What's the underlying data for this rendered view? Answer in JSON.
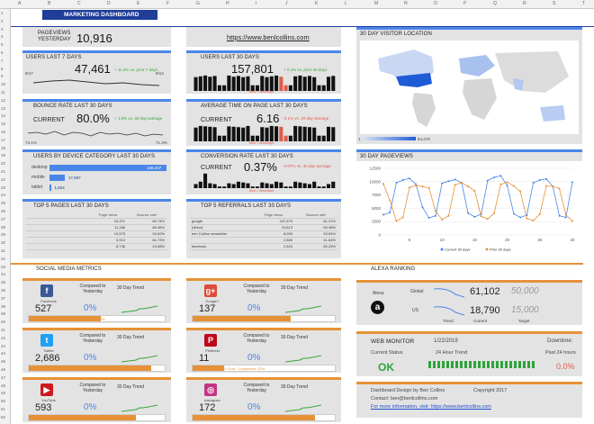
{
  "sheet": {
    "columns": [
      "A",
      "B",
      "C",
      "D",
      "E",
      "F",
      "G",
      "H",
      "I",
      "J",
      "K",
      "L",
      "M",
      "N",
      "O",
      "P",
      "Q",
      "R",
      "S",
      "T"
    ],
    "rows": [
      "1",
      "2",
      "3",
      "4",
      "5",
      "6",
      "7",
      "8",
      "9",
      "10",
      "11",
      "12",
      "13",
      "14",
      "15",
      "16",
      "17",
      "18",
      "19",
      "20",
      "21",
      "22",
      "23",
      "24",
      "25",
      "26",
      "27",
      "28",
      "29",
      "30",
      "31",
      "32",
      "33",
      "34",
      "35",
      "36",
      "37",
      "38",
      "39",
      "40",
      "41",
      "42",
      "43",
      "44",
      "45",
      "46",
      "47",
      "48",
      "49",
      "50",
      "51",
      "52"
    ]
  },
  "title": "MARKETING DASHBOARD",
  "pageviews": {
    "label1": "PAGEVIEWS",
    "label2": "YESTERDAY",
    "value": "10,916"
  },
  "site": {
    "url": "https://www.benlcollins.com"
  },
  "users7": {
    "title": "USERS LAST 7 DAYS",
    "value": "47,461",
    "change": "+ 11.3% vs. prior 7 days",
    "axis_left": "8/17",
    "axis_right": "8/13"
  },
  "users30": {
    "title": "USERS LAST 30 DAYS",
    "value": "157,801",
    "change": "+ 0.4% vs. prior 30 days",
    "footnote": "Best = Weekdays"
  },
  "bounce": {
    "title": "BOUNCE RATE LAST 30 DAYS",
    "current_label": "CURRENT",
    "value": "80.0%",
    "change": "+ 1.9% vs. 30 day average",
    "axis_left": "74.1%",
    "axis_right": "71.3%"
  },
  "avgtime": {
    "title": "AVERAGE TIME ON PAGE LAST 30 DAYS",
    "current_label": "CURRENT",
    "value": "6.16",
    "change": "- 0.1% vs. 30 day average",
    "footnote": "Best = Weekdays"
  },
  "device": {
    "title": "USERS BY DEVICE CATEGORY LAST 30 DAYS",
    "rows": [
      {
        "name": "desktop",
        "value": "139,437",
        "pct": 1.0
      },
      {
        "name": "mobile",
        "value": "17,997",
        "pct": 0.13
      },
      {
        "name": "tablet",
        "value": "1,604",
        "pct": 0.012
      }
    ]
  },
  "conversion": {
    "title": "CONVERSION RATE LAST 30 DAYS",
    "current_label": "CURRENT",
    "value": "0.37%",
    "change": "- 0.07% vs. 30 day average",
    "footnote": "Best = Weekdays"
  },
  "top5pages": {
    "title": "TOP 5 PAGES LAST 30 DAYS",
    "headers": [
      "",
      "Page views",
      "Bounce rate"
    ],
    "rows": [
      [
        "",
        "16,371",
        "82.74%"
      ],
      [
        "",
        "11,186",
        "86.36%"
      ],
      [
        "",
        "10,579",
        "93.62%"
      ],
      [
        "",
        "9,913",
        "81.73%"
      ],
      [
        "",
        "8,736",
        "43.58%"
      ]
    ]
  },
  "top5ref": {
    "title": "TOP 5 REFERRALS LAST 30 DAYS",
    "headers": [
      "",
      "Page views",
      "Bounce rate"
    ],
    "rows": [
      [
        "google",
        "197,579",
        "81.21%"
      ],
      [
        "(direct)",
        "19,613",
        "69.38%"
      ],
      [
        "ben Collins newsletter",
        "6,093",
        "53.54%"
      ],
      [
        "",
        "2,865",
        "41.64%"
      ],
      [
        "facebook",
        "2,615",
        "60.25%"
      ]
    ]
  },
  "map": {
    "title": "30 DAY VISITOR LOCATION",
    "legend_min": "1",
    "legend_max": "84,478"
  },
  "pv30": {
    "title": "30 DAY PAGEVIEWS"
  },
  "chart_data": {
    "type": "line",
    "title": "30 DAY PAGEVIEWS",
    "x": [
      1,
      2,
      3,
      4,
      5,
      6,
      7,
      8,
      9,
      10,
      11,
      12,
      13,
      14,
      15,
      16,
      17,
      18,
      19,
      20,
      21,
      22,
      23,
      24,
      25,
      26,
      27,
      28,
      29,
      30
    ],
    "xticks": [
      5,
      10,
      15,
      20,
      25,
      30
    ],
    "ylim": [
      0,
      12500
    ],
    "yticks": [
      0,
      2500,
      5000,
      7500,
      10000,
      12500
    ],
    "legend": "bottom",
    "series": [
      {
        "name": "Current 30 days",
        "color": "#4a86e8",
        "values": [
          3800,
          4200,
          9800,
          10300,
          10600,
          9500,
          5200,
          3200,
          3600,
          9700,
          10100,
          10400,
          9800,
          4100,
          3400,
          3900,
          10200,
          10800,
          11100,
          9300,
          4000,
          3300,
          3700,
          9800,
          10300,
          10500,
          9100,
          3600,
          3300,
          9900
        ]
      },
      {
        "name": "Prior 30 days",
        "color": "#e69138",
        "values": [
          9600,
          6500,
          2600,
          3300,
          8900,
          9300,
          9100,
          8800,
          4500,
          2900,
          3600,
          9400,
          9800,
          9100,
          8300,
          3500,
          3000,
          4100,
          9500,
          9900,
          9200,
          8200,
          3100,
          2700,
          3900,
          9200,
          9100,
          8700,
          3800,
          2600
        ]
      }
    ]
  },
  "social": {
    "title": "SOCIAL MEDIA METRICS",
    "compared_label": "Compared to Yesterday",
    "trend_label": "30 Day Trend",
    "items": [
      {
        "name": "Facebook",
        "value": "527",
        "pct": "0%",
        "goal": "1000 Goal - Completed: 53%",
        "progress": 0.53,
        "color": "#3b5998",
        "glyph": "f"
      },
      {
        "name": "Google+",
        "value": "137",
        "pct": "0%",
        "goal": "200 Goal - Completed: 69%",
        "progress": 0.69,
        "color": "#dd4b39",
        "glyph": "g+"
      },
      {
        "name": "Twitter",
        "value": "2,686",
        "pct": "0%",
        "goal": "3000 Goal - Completed: 90%",
        "progress": 0.9,
        "color": "#1da1f2",
        "glyph": "t"
      },
      {
        "name": "Pinterest",
        "value": "11",
        "pct": "0%",
        "goal": "50 Goal - Completed: 22%",
        "progress": 0.22,
        "color": "#bd081c",
        "glyph": "P"
      },
      {
        "name": "YouTube",
        "value": "593",
        "pct": "0%",
        "goal": "750 Goal - Completed: 79%",
        "progress": 0.79,
        "color": "#cc181e",
        "glyph": "▶"
      },
      {
        "name": "Instagram",
        "value": "172",
        "pct": "0%",
        "goal": "200 Goal - Completed: 86%",
        "progress": 0.86,
        "color": "#c13584",
        "glyph": "◎"
      }
    ]
  },
  "alexa": {
    "title": "ALEXA RANKING",
    "label": "Alexa",
    "global_label": "Global",
    "us_label": "US",
    "global_current": "61,102",
    "global_target": "50,000",
    "us_current": "18,790",
    "us_target": "15,000",
    "trend_label": "Trend",
    "current_label": "Current",
    "target_label": "Target"
  },
  "monitor": {
    "title": "WEB MONITOR",
    "date": "1/22/2019",
    "downtime_label": "Downtime:",
    "status_label": "Current Status",
    "trend_label": "24 Hour Trend",
    "past_label": "Past 24 hours",
    "status": "OK",
    "downtime": "0.0%"
  },
  "footer": {
    "line1": "Dashboard Design by Ben Collins",
    "copyright": "Copyright 2017",
    "contact": "Contact: ben@benlcollins.com",
    "more": "For more information, visit: https://www.benlcollins.com"
  }
}
